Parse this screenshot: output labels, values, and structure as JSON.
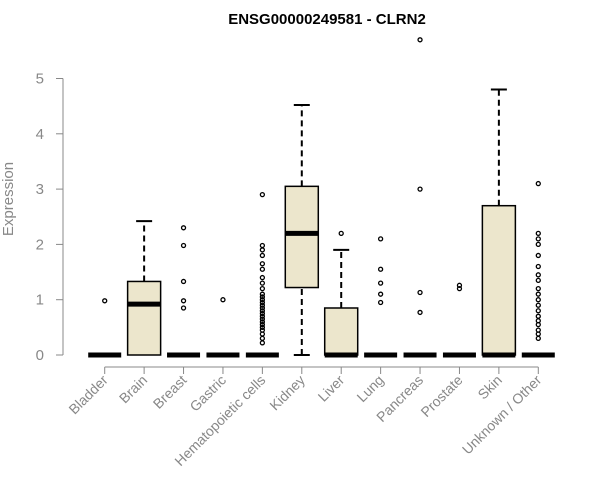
{
  "chart_data": {
    "type": "box",
    "title": "ENSG00000249581 - CLRN2",
    "xlabel": "",
    "ylabel": "Expression",
    "ylim": [
      0,
      5.8
    ],
    "yticks": [
      0,
      1,
      2,
      3,
      4,
      5
    ],
    "colors": {
      "box_fill": "#ece6cc",
      "stroke": "#000000",
      "axis": "#888888"
    },
    "categories": [
      "Bladder",
      "Brain",
      "Breast",
      "Gastric",
      "Hematopoietic cells",
      "Kidney",
      "Liver",
      "Lung",
      "Pancreas",
      "Prostate",
      "Skin",
      "Unknown / Other"
    ],
    "boxes": [
      {
        "category": "Bladder",
        "min": 0,
        "q1": 0,
        "median": 0,
        "q3": 0,
        "max": 0,
        "outliers": [
          0.98
        ]
      },
      {
        "category": "Brain",
        "min": 0,
        "q1": 0,
        "median": 0.92,
        "q3": 1.33,
        "max": 2.42,
        "outliers": []
      },
      {
        "category": "Breast",
        "min": 0,
        "q1": 0,
        "median": 0,
        "q3": 0,
        "max": 0,
        "outliers": [
          0.85,
          0.98,
          1.33,
          1.98,
          2.3
        ]
      },
      {
        "category": "Gastric",
        "min": 0,
        "q1": 0,
        "median": 0,
        "q3": 0,
        "max": 0,
        "outliers": [
          1.0
        ]
      },
      {
        "category": "Hematopoietic cells",
        "min": 0,
        "q1": 0,
        "median": 0,
        "q3": 0,
        "max": 0,
        "outliers": [
          0.22,
          0.3,
          0.38,
          0.45,
          0.5,
          0.55,
          0.6,
          0.65,
          0.7,
          0.75,
          0.8,
          0.85,
          0.9,
          0.95,
          1.0,
          1.05,
          1.1,
          1.2,
          1.3,
          1.4,
          1.55,
          1.65,
          1.8,
          1.9,
          1.98,
          2.9
        ]
      },
      {
        "category": "Kidney",
        "min": 0,
        "q1": 1.22,
        "median": 2.2,
        "q3": 3.05,
        "max": 4.52,
        "outliers": []
      },
      {
        "category": "Liver",
        "min": 0,
        "q1": 0,
        "median": 0,
        "q3": 0.85,
        "max": 1.9,
        "outliers": [
          2.2
        ]
      },
      {
        "category": "Lung",
        "min": 0,
        "q1": 0,
        "median": 0,
        "q3": 0,
        "max": 0,
        "outliers": [
          0.95,
          1.1,
          1.3,
          1.55,
          2.1
        ]
      },
      {
        "category": "Pancreas",
        "min": 0,
        "q1": 0,
        "median": 0,
        "q3": 0,
        "max": 0,
        "outliers": [
          0.77,
          1.13,
          3.0,
          5.7
        ]
      },
      {
        "category": "Prostate",
        "min": 0,
        "q1": 0,
        "median": 0,
        "q3": 0,
        "max": 0,
        "outliers": [
          1.2,
          1.26
        ]
      },
      {
        "category": "Skin",
        "min": 0,
        "q1": 0,
        "median": 0,
        "q3": 2.7,
        "max": 4.8,
        "outliers": []
      },
      {
        "category": "Unknown / Other",
        "min": 0,
        "q1": 0,
        "median": 0,
        "q3": 0,
        "max": 0,
        "outliers": [
          0.3,
          0.38,
          0.45,
          0.55,
          0.62,
          0.7,
          0.8,
          0.9,
          1.0,
          1.1,
          1.2,
          1.35,
          1.45,
          1.6,
          1.8,
          2.0,
          2.1,
          2.2,
          3.1
        ]
      }
    ]
  }
}
